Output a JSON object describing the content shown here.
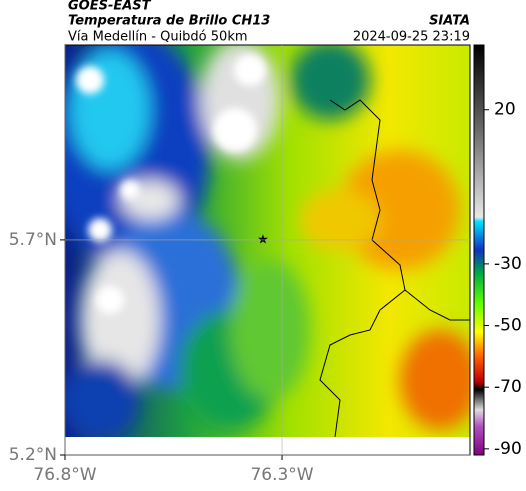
{
  "header": {
    "satellite": "GOES-EAST",
    "product": "Temperatura de Brillo CH13",
    "region": "Vía Medellín - Quibdó 50km",
    "source": "SIATA",
    "timestamp": "2024-09-25 23:19"
  },
  "map": {
    "xlim": [
      -76.8,
      -75.867
    ],
    "ylim": [
      5.2,
      6.153
    ],
    "xticks": [
      {
        "value": -76.8,
        "label": "76.8°W"
      },
      {
        "value": -76.3,
        "label": "76.3°W"
      }
    ],
    "yticks": [
      {
        "value": 5.2,
        "label": "5.2°N"
      },
      {
        "value": 5.7,
        "label": "5.7°N"
      }
    ],
    "grid": true
  },
  "colorbar": {
    "clim": [
      -92,
      41
    ],
    "ticks": [
      20,
      -30,
      -50,
      -70,
      -90
    ]
  }
}
